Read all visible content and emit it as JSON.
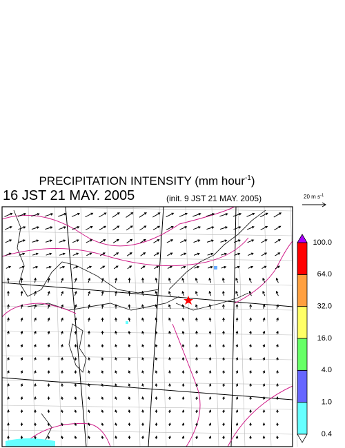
{
  "header": {
    "title": "PRECIPITATION INTENSITY (mm hour",
    "title_exponent": "-1",
    "title_close": ")",
    "valid_time": "16 JST 21 MAY. 2005",
    "init_time": "(init. 9 JST 21 MAY. 2005)"
  },
  "vector_scale": {
    "label": "20 m s",
    "exponent": "-1"
  },
  "colorbar": {
    "levels": [
      "0.4",
      "1.0",
      "4.0",
      "16.0",
      "32.0",
      "64.0",
      "100.0"
    ],
    "colors": [
      "#66ffff",
      "#6666ff",
      "#66ff66",
      "#ffff66",
      "#ffa040",
      "#ff0000"
    ],
    "under_color": "#ffffff",
    "over_color": "#aa00ff"
  }
}
